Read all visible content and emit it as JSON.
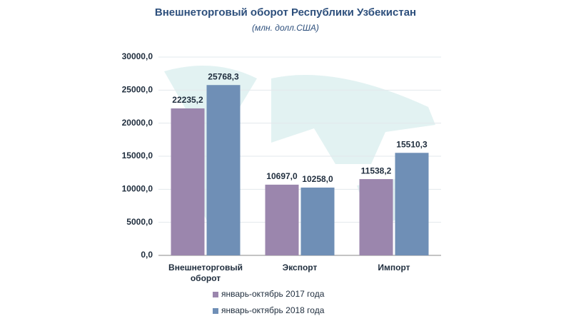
{
  "chart_data": {
    "type": "bar",
    "title": "Внешнеторговый оборот Республики Узбекистан",
    "subtitle": "(млн. долл.США)",
    "categories": [
      "Внешнеторговый оборот",
      "Экспорт",
      "Импорт"
    ],
    "series": [
      {
        "name": "январь-октябрь 2017 года",
        "color": "#9b86ad",
        "values": [
          22235.2,
          10697.0,
          11538.2
        ],
        "value_labels": [
          "22235,2",
          "10697,0",
          "11538,2"
        ]
      },
      {
        "name": "январь-октябрь 2018 года",
        "color": "#6f8fb6",
        "values": [
          25768.3,
          10258.0,
          15510.3
        ],
        "value_labels": [
          "25768,3",
          "10258,0",
          "15510,3"
        ]
      }
    ],
    "ylim": [
      0,
      30000
    ],
    "yticks": [
      {
        "value": 0,
        "label": "0,0"
      },
      {
        "value": 5000,
        "label": "5000,0"
      },
      {
        "value": 10000,
        "label": "10000,0"
      },
      {
        "value": 15000,
        "label": "15000,0"
      },
      {
        "value": 20000,
        "label": "20000,0"
      },
      {
        "value": 25000,
        "label": "25000,0"
      },
      {
        "value": 30000,
        "label": "30000,0"
      }
    ],
    "grid": true
  }
}
